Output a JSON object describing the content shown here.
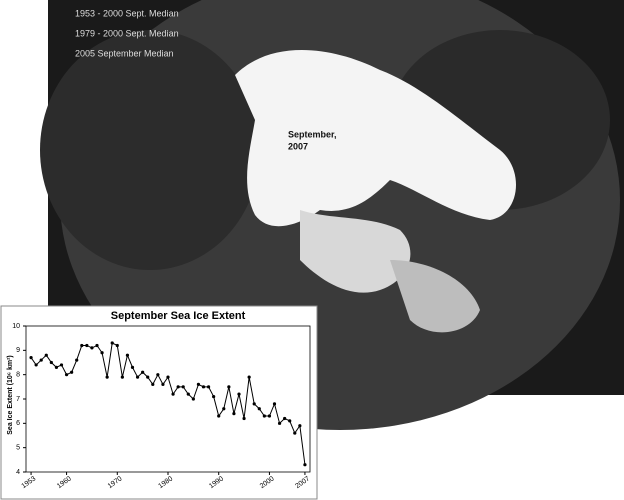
{
  "map": {
    "legend": [
      "1953 - 2000 Sept. Median",
      "1979 - 2000 Sept. Median",
      "2005 September Median"
    ],
    "label_lines": [
      "September,",
      "2007"
    ]
  },
  "chart_data": {
    "type": "line",
    "title": "September Sea Ice Extent",
    "y_label": "Sea Ice Extent (10⁶ km²)",
    "x": [
      1953,
      1954,
      1955,
      1956,
      1957,
      1958,
      1959,
      1960,
      1961,
      1962,
      1963,
      1964,
      1965,
      1966,
      1967,
      1968,
      1969,
      1970,
      1971,
      1972,
      1973,
      1974,
      1975,
      1976,
      1977,
      1978,
      1979,
      1980,
      1981,
      1982,
      1983,
      1984,
      1985,
      1986,
      1987,
      1988,
      1989,
      1990,
      1991,
      1992,
      1993,
      1994,
      1995,
      1996,
      1997,
      1998,
      1999,
      2000,
      2001,
      2002,
      2003,
      2004,
      2005,
      2006,
      2007
    ],
    "values": [
      8.7,
      8.4,
      8.6,
      8.8,
      8.5,
      8.3,
      8.4,
      8.0,
      8.1,
      8.6,
      9.2,
      9.2,
      9.1,
      9.2,
      8.9,
      7.9,
      9.3,
      9.2,
      7.9,
      8.8,
      8.3,
      7.9,
      8.1,
      7.9,
      7.6,
      8.0,
      7.6,
      7.9,
      7.2,
      7.5,
      7.5,
      7.2,
      7.0,
      7.6,
      7.5,
      7.5,
      7.1,
      6.3,
      6.6,
      7.5,
      6.4,
      7.2,
      6.2,
      7.9,
      6.8,
      6.6,
      6.3,
      6.3,
      6.8,
      6.0,
      6.2,
      6.1,
      5.6,
      5.9,
      4.3
    ],
    "color": "#000000",
    "xlim": [
      1952,
      2008
    ],
    "xticks": [
      1953,
      1960,
      1970,
      1980,
      1990,
      2000,
      2007
    ],
    "ylim": [
      4,
      10
    ],
    "yticks": [
      4,
      5,
      6,
      7,
      8,
      9,
      10
    ],
    "grid": false
  }
}
